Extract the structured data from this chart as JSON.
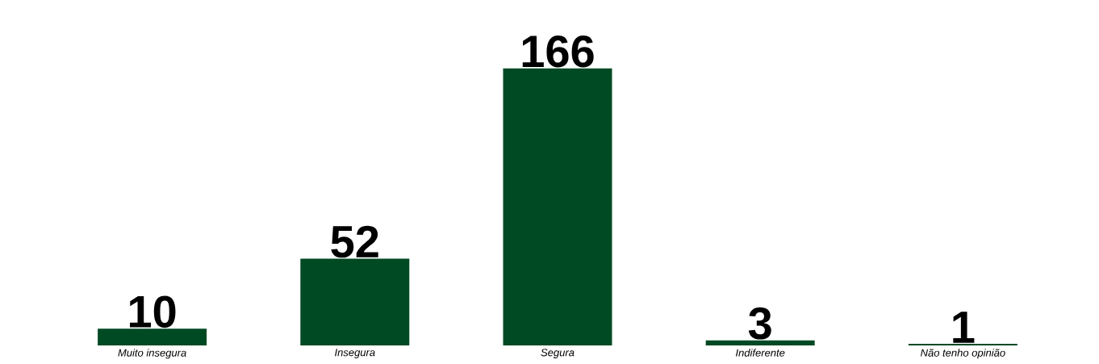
{
  "chart_data": {
    "type": "bar",
    "categories": [
      "Muito insegura",
      "Insegura",
      "Segura",
      "Indiferente",
      "Não tenho opinião"
    ],
    "values": [
      10,
      52,
      166,
      3,
      1
    ],
    "color": "#004a23",
    "data_labels": true
  }
}
